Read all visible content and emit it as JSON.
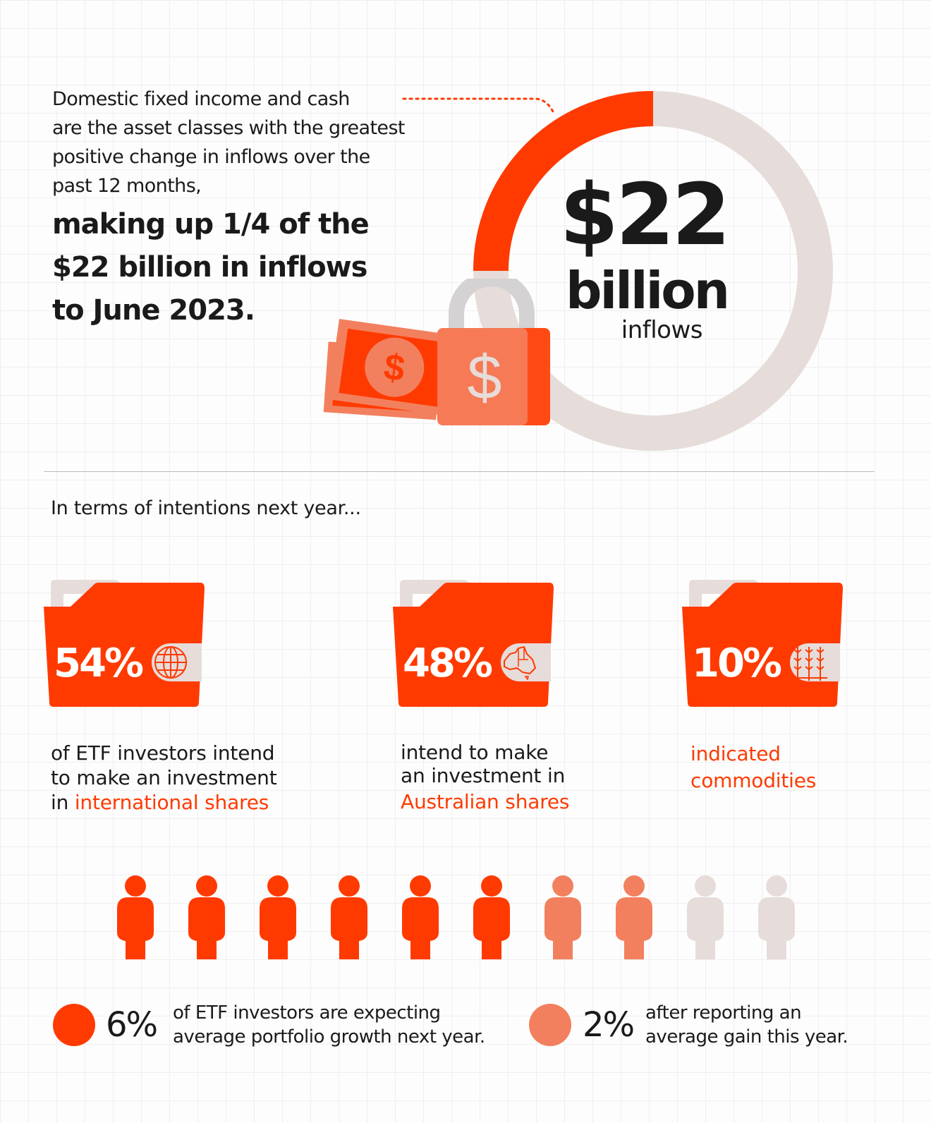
{
  "colors": {
    "accent": "#ff3a00",
    "accent_light": "#f2805e",
    "neutral": "#e6dcda",
    "text": "#1a1a1a"
  },
  "top": {
    "intro_lines": [
      "Domestic fixed income and cash",
      "are the asset classes with the greatest",
      "positive change in inflows over the",
      "past 12 months,"
    ],
    "bold_lines": [
      "making up 1/4 of the",
      "$22 billion in inflows",
      "to June 2023."
    ],
    "donut": {
      "highlighted_fraction": 0.25,
      "amount": "$22",
      "unit": "billion",
      "label": "inflows"
    },
    "icons": [
      "cash-notes-icon",
      "padlock-dollar-icon"
    ]
  },
  "section_heading": "In terms of intentions next year...",
  "intentions": [
    {
      "percent": "54%",
      "icon": "globe-icon",
      "text_lines": [
        "of ETF investors intend",
        "to make an investment"
      ],
      "prefix": "in ",
      "highlight": "international shares"
    },
    {
      "percent": "48%",
      "icon": "australia-map-icon",
      "text_lines": [
        "intend to make",
        "an investment in"
      ],
      "prefix": "",
      "highlight": "Australian shares"
    },
    {
      "percent": "10%",
      "icon": "wheat-icon",
      "text_lines": [],
      "prefix": "",
      "highlight_lines": [
        "indicated",
        "commodities"
      ]
    }
  ],
  "people": {
    "total": 10,
    "dark": 6,
    "light": 2
  },
  "legend": [
    {
      "percent": "6%",
      "color": "#ff3a00",
      "lines": [
        "of ETF investors are expecting",
        "average portfolio growth next year."
      ]
    },
    {
      "percent": "2%",
      "color": "#f2805e",
      "lines": [
        "after reporting an",
        "average gain this year."
      ]
    }
  ]
}
